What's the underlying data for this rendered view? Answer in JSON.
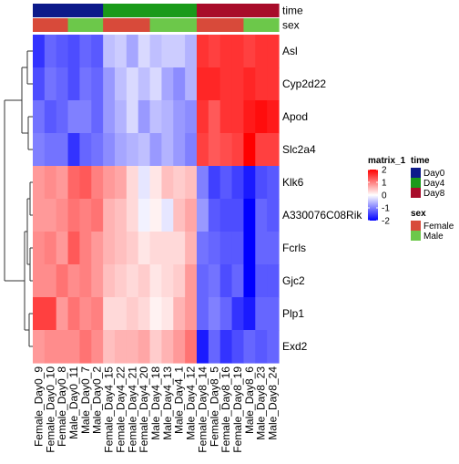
{
  "chart_data": {
    "type": "heatmap",
    "rows": [
      "Asl",
      "Cyp2d22",
      "Apod",
      "Slc2a4",
      "Klk6",
      "A330076C08Rik",
      "Fcrls",
      "Gjc2",
      "Plp1",
      "Exd2"
    ],
    "columns": [
      "Female_Day0_9",
      "Female_Day0_10",
      "Female_Day0_8",
      "Male_Day0_11",
      "Male_Day0_7",
      "Male_Day0_2",
      "Female_Day4_15",
      "Female_Day4_22",
      "Female_Day4_21",
      "Female_Day4_20",
      "Male_Day4_18",
      "Male_Day4_13",
      "Male_Day4_1",
      "Male_Day4_12",
      "Female_Day8_14",
      "Female_Day8_5",
      "Female_Day8_16",
      "Female_Day8_19",
      "Male_Day8_6",
      "Male_Day8_23",
      "Male_Day8_24"
    ],
    "values": [
      [
        -1.6,
        -1.2,
        -1.3,
        -1.4,
        -1.2,
        -1.3,
        -0.5,
        -0.4,
        -0.7,
        -0.3,
        -0.5,
        -0.4,
        -0.4,
        -0.6,
        1.6,
        1.5,
        1.6,
        1.6,
        1.5,
        1.6,
        1.6
      ],
      [
        -1.4,
        -1.1,
        -1.2,
        -1.4,
        -1.1,
        -1.2,
        -0.8,
        -0.5,
        -0.3,
        -0.5,
        -0.3,
        -0.7,
        -0.9,
        -0.6,
        1.7,
        1.7,
        1.6,
        1.6,
        1.7,
        1.6,
        1.6
      ],
      [
        -1.1,
        -1.3,
        -1.2,
        -1.0,
        -1.0,
        -1.2,
        -0.8,
        -0.6,
        -0.3,
        -0.8,
        -0.5,
        -0.6,
        -0.8,
        -0.9,
        1.6,
        1.3,
        1.6,
        1.6,
        1.8,
        1.9,
        1.8
      ],
      [
        -1.0,
        -1.1,
        -1.1,
        -1.6,
        -1.2,
        -1.1,
        -0.9,
        -0.7,
        -0.6,
        -0.5,
        -0.8,
        -0.6,
        -0.8,
        -1.0,
        1.5,
        1.3,
        1.4,
        1.5,
        2.2,
        1.5,
        1.5
      ],
      [
        0.8,
        0.9,
        0.8,
        1.2,
        1.3,
        1.0,
        0.8,
        0.7,
        0.3,
        -0.2,
        0.2,
        0.5,
        0.4,
        0.5,
        -1.0,
        -1.5,
        -1.3,
        -1.5,
        -1.8,
        -1.4,
        -1.3
      ],
      [
        0.8,
        0.8,
        0.9,
        1.1,
        1.0,
        1.1,
        0.6,
        0.5,
        0.3,
        -0.1,
        0.1,
        -0.2,
        0.5,
        0.7,
        -0.8,
        -1.3,
        -1.4,
        -1.4,
        -2.2,
        -1.2,
        -1.3
      ],
      [
        0.9,
        1.0,
        0.8,
        1.3,
        1.0,
        0.8,
        0.6,
        0.5,
        0.4,
        0.2,
        0.3,
        0.3,
        0.3,
        0.6,
        -1.1,
        -1.2,
        -1.3,
        -1.3,
        -2.0,
        -1.2,
        -1.2
      ],
      [
        0.9,
        0.9,
        1.1,
        0.9,
        1.0,
        0.8,
        0.5,
        0.4,
        0.3,
        0.4,
        0.2,
        0.3,
        0.4,
        0.8,
        -1.2,
        -1.1,
        -1.4,
        -1.2,
        -2.0,
        -1.3,
        -1.3
      ],
      [
        1.5,
        1.5,
        0.8,
        1.1,
        0.9,
        1.0,
        0.3,
        0.3,
        0.4,
        0.3,
        0.1,
        0.2,
        0.6,
        0.8,
        -1.2,
        -1.0,
        -1.2,
        -1.6,
        -1.8,
        -1.2,
        -1.2
      ],
      [
        0.8,
        0.9,
        0.9,
        0.9,
        1.1,
        0.9,
        0.5,
        0.6,
        0.6,
        0.7,
        0.4,
        0.6,
        0.8,
        1.1,
        -1.8,
        -1.2,
        -1.6,
        -1.4,
        -1.2,
        -1.3,
        -1.2
      ]
    ],
    "annotations": {
      "time": {
        "title": "time",
        "values": [
          "Day0",
          "Day0",
          "Day0",
          "Day0",
          "Day0",
          "Day0",
          "Day4",
          "Day4",
          "Day4",
          "Day4",
          "Day4",
          "Day4",
          "Day4",
          "Day4",
          "Day8",
          "Day8",
          "Day8",
          "Day8",
          "Day8",
          "Day8",
          "Day8"
        ],
        "legend": [
          {
            "label": "Day0",
            "color": "#0c1a8a"
          },
          {
            "label": "Day4",
            "color": "#1a9a1a"
          },
          {
            "label": "Day8",
            "color": "#a80c2a"
          }
        ]
      },
      "sex": {
        "title": "sex",
        "values": [
          "Female",
          "Female",
          "Female",
          "Male",
          "Male",
          "Male",
          "Female",
          "Female",
          "Female",
          "Female",
          "Male",
          "Male",
          "Male",
          "Male",
          "Female",
          "Female",
          "Female",
          "Female",
          "Male",
          "Male",
          "Male"
        ],
        "legend": [
          {
            "label": "Female",
            "color": "#d84a3a"
          },
          {
            "label": "Male",
            "color": "#6cc84a"
          }
        ]
      }
    },
    "color_scale": {
      "title": "matrix_1",
      "ticks": [
        2,
        1,
        0,
        -1,
        -2
      ],
      "range": [
        -2,
        2
      ],
      "low": "#0000ff",
      "mid": "#ffffff",
      "high": "#ff0000"
    },
    "row_dendrogram": {
      "groups": [
        [
          "Asl",
          "Cyp2d22",
          "Apod",
          "Slc2a4"
        ],
        [
          "Klk6",
          "A330076C08Rik",
          "Fcrls",
          "Gjc2",
          "Plp1",
          "Exd2"
        ]
      ]
    }
  }
}
